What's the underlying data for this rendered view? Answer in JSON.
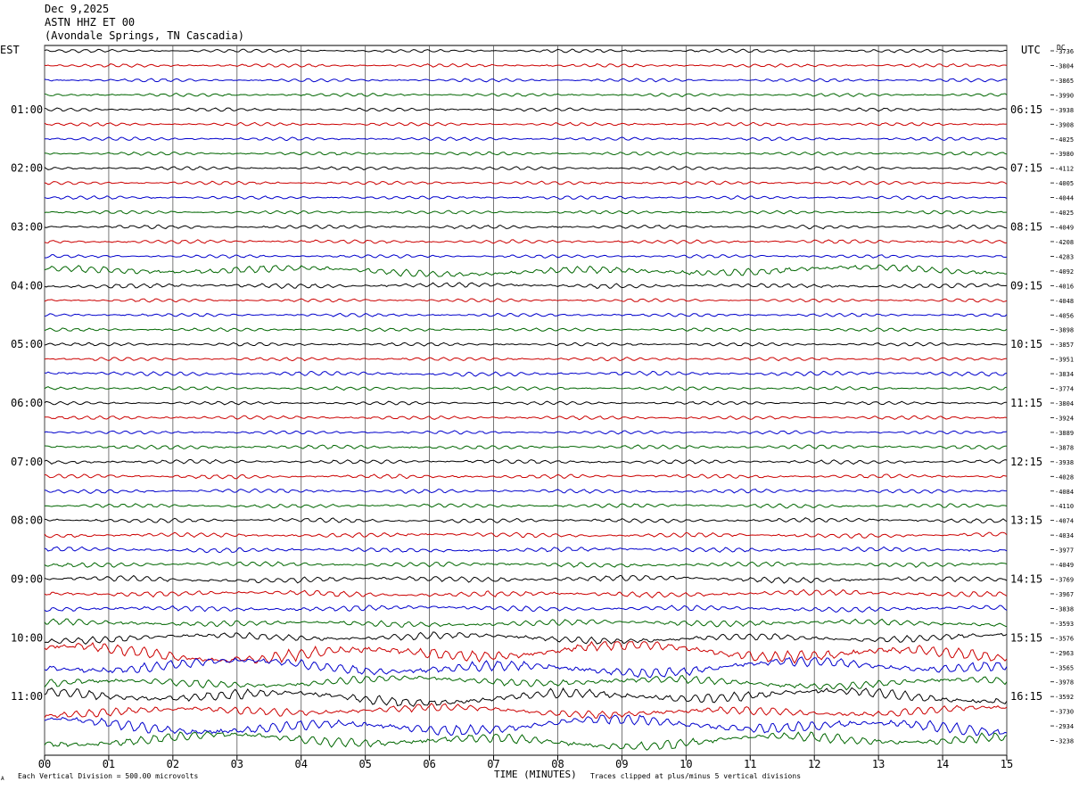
{
  "header": {
    "date": "Dec 9,2025",
    "station": "ASTN HHZ ET 00",
    "location": "(Avondale Springs, TN Cascadia)"
  },
  "labels": {
    "left_zone": "EST",
    "right_zone": "UTC",
    "dc_header": "DC",
    "xlabel": "TIME (MINUTES)",
    "scale_note": "Each Vertical Division =  500.00 microvolts",
    "clip_note": "Traces clipped at plus/minus 5 vertical divisions",
    "corner_mark": "A"
  },
  "colors": {
    "trace_cycle": [
      "#000000",
      "#cc0000",
      "#0000cc",
      "#006600"
    ],
    "grid": "#000000"
  },
  "chart_data": {
    "type": "line",
    "subtype": "helicorder",
    "x_ticks": [
      "00",
      "01",
      "02",
      "03",
      "04",
      "05",
      "06",
      "07",
      "08",
      "09",
      "10",
      "11",
      "12",
      "13",
      "14",
      "15"
    ],
    "xlim": [
      0,
      15
    ],
    "grid": true,
    "lines_per_hour": 4,
    "left_hour_labels": [
      "01:00",
      "02:00",
      "03:00",
      "04:00",
      "05:00",
      "06:00",
      "07:00",
      "08:00",
      "09:00",
      "10:00",
      "11:00"
    ],
    "right_hour_labels": [
      "06:15",
      "07:15",
      "08:15",
      "09:15",
      "10:15",
      "11:15",
      "12:15",
      "13:15",
      "14:15",
      "15:15",
      "16:15"
    ],
    "dc_offsets": [
      "-3736",
      "-3804",
      "-3865",
      "-3990",
      "-3938",
      "-3908",
      "-4025",
      "-3980",
      "-4112",
      "-4005",
      "-4044",
      "-4025",
      "-4049",
      "-4208",
      "-4283",
      "-4092",
      "-4016",
      "-4048",
      "-4056",
      "-3898",
      "-3857",
      "-3951",
      "-3834",
      "-3774",
      "-3804",
      "-3924",
      "-3889",
      "-3878",
      "-3938",
      "-4028",
      "-4084",
      "-4110",
      "-4074",
      "-4034",
      "-3977",
      "-4049",
      "-3769",
      "-3967",
      "-3838",
      "-3593",
      "-3576",
      "-2963",
      "-3565",
      "-3978",
      "-3592",
      "-3730",
      "-2934",
      "-3238"
    ],
    "trace_amplitude": [
      1,
      1,
      1,
      1,
      1,
      1,
      1,
      1,
      1,
      1,
      1,
      1,
      1.1,
      1.1,
      1,
      2.2,
      1.4,
      1,
      1,
      1,
      1,
      1,
      1.3,
      1,
      1,
      1.1,
      1,
      1.2,
      1.2,
      1.2,
      1.2,
      1.2,
      1.3,
      1.4,
      1.4,
      1.4,
      1.7,
      1.7,
      1.6,
      1.8,
      2.1,
      3.6,
      3.2,
      2.4,
      3,
      2.4,
      3.3,
      3
    ]
  }
}
